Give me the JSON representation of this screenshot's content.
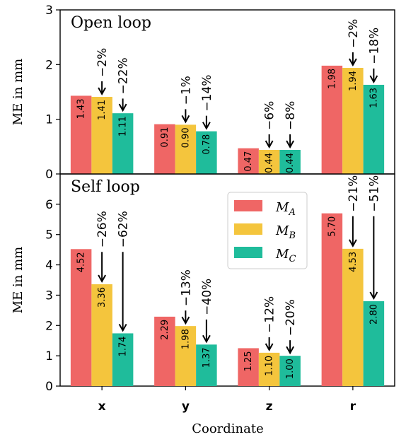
{
  "chart_data": {
    "type": "bar",
    "xlabel": "Coordinate",
    "ylabel": "ME in mm",
    "categories": [
      "x",
      "y",
      "z",
      "r"
    ],
    "legend": {
      "placement": "upper-center of bottom panel",
      "entries": [
        {
          "name": "M",
          "sub": "A",
          "color": "#ef6665"
        },
        {
          "name": "M",
          "sub": "B",
          "color": "#f4c53d"
        },
        {
          "name": "M",
          "sub": "C",
          "color": "#1fbc9b"
        }
      ]
    },
    "panels": [
      {
        "title": "Open loop",
        "ylim": [
          0,
          3
        ],
        "yticks": [
          0,
          1,
          2,
          3
        ],
        "series": [
          {
            "name": "M_A",
            "values": [
              1.43,
              0.91,
              0.47,
              1.98
            ],
            "labels": [
              "1.43",
              "0.91",
              "0.47",
              "1.98"
            ]
          },
          {
            "name": "M_B",
            "values": [
              1.41,
              0.9,
              0.44,
              1.94
            ],
            "labels": [
              "1.41",
              "0.90",
              "0.44",
              "1.94"
            ]
          },
          {
            "name": "M_C",
            "values": [
              1.11,
              0.78,
              0.44,
              1.63
            ],
            "labels": [
              "1.11",
              "0.78",
              "0.44",
              "1.63"
            ]
          }
        ],
        "changes": {
          "M_B": [
            "−2%",
            "−1%",
            "−6%",
            "−2%"
          ],
          "M_C": [
            "−22%",
            "−14%",
            "−8%",
            "−18%"
          ]
        }
      },
      {
        "title": "Self loop",
        "ylim": [
          0,
          7
        ],
        "yticks": [
          0,
          1,
          2,
          3,
          4,
          5,
          6
        ],
        "series": [
          {
            "name": "M_A",
            "values": [
              4.52,
              2.29,
              1.25,
              5.7
            ],
            "labels": [
              "4.52",
              "2.29",
              "1.25",
              "5.70"
            ]
          },
          {
            "name": "M_B",
            "values": [
              3.36,
              1.98,
              1.1,
              4.53
            ],
            "labels": [
              "3.36",
              "1.98",
              "1.10",
              "4.53"
            ]
          },
          {
            "name": "M_C",
            "values": [
              1.74,
              1.37,
              1.0,
              2.8
            ],
            "labels": [
              "1.74",
              "1.37",
              "1.00",
              "2.80"
            ]
          }
        ],
        "changes": {
          "M_B": [
            "−26%",
            "−13%",
            "−12%",
            "−21%"
          ],
          "M_C": [
            "−62%",
            "−40%",
            "−20%",
            "−51%"
          ]
        }
      }
    ]
  }
}
